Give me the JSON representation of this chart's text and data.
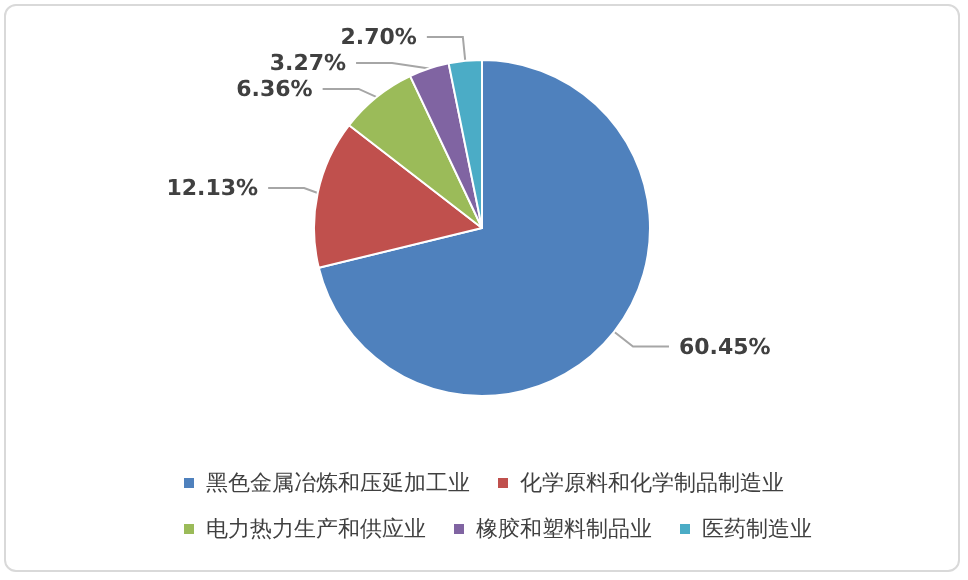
{
  "chart_data": {
    "type": "pie",
    "categories": [
      "黑色金属冶炼和压延加工业",
      "化学原料和化学制品制造业",
      "电力热力生产和供应业",
      "橡胶和塑料制品业",
      "医药制造业"
    ],
    "values": [
      60.45,
      12.13,
      6.36,
      3.27,
      2.7
    ],
    "value_labels": [
      "60.45%",
      "12.13%",
      "6.36%",
      "3.27%",
      "2.70%"
    ],
    "colors": [
      "#4f81bd",
      "#c0504d",
      "#9bbb59",
      "#8064a2",
      "#4bacc6"
    ],
    "legend": "bottom"
  }
}
